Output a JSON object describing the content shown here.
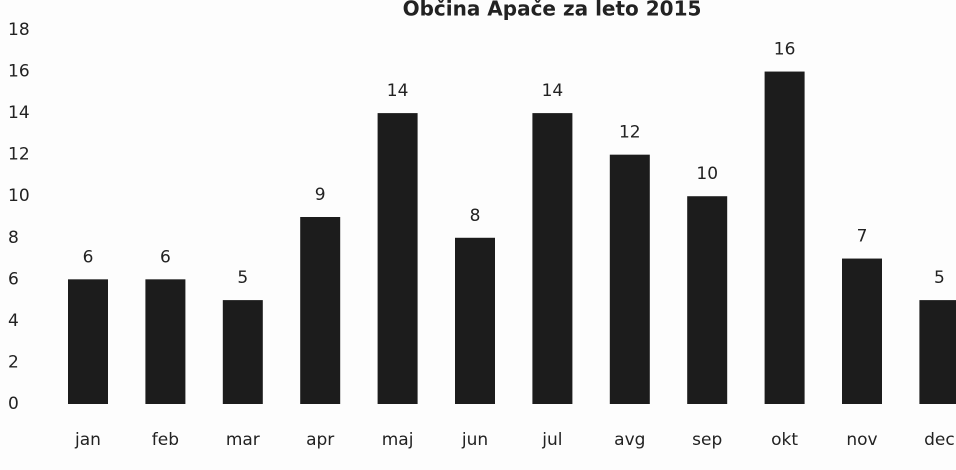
{
  "chart_data": {
    "type": "bar",
    "title": "Občina Apače za leto 2015",
    "categories": [
      "jan",
      "feb",
      "mar",
      "apr",
      "maj",
      "jun",
      "jul",
      "avg",
      "sep",
      "okt",
      "nov",
      "dec"
    ],
    "values": [
      6,
      6,
      5,
      9,
      14,
      8,
      14,
      12,
      10,
      16,
      7,
      5
    ],
    "color": "#1c1c1c",
    "ylim": [
      0,
      18
    ],
    "yticks": [
      0,
      2,
      4,
      6,
      8,
      10,
      12,
      14,
      16,
      18
    ],
    "grid": false,
    "data_labels": true
  }
}
